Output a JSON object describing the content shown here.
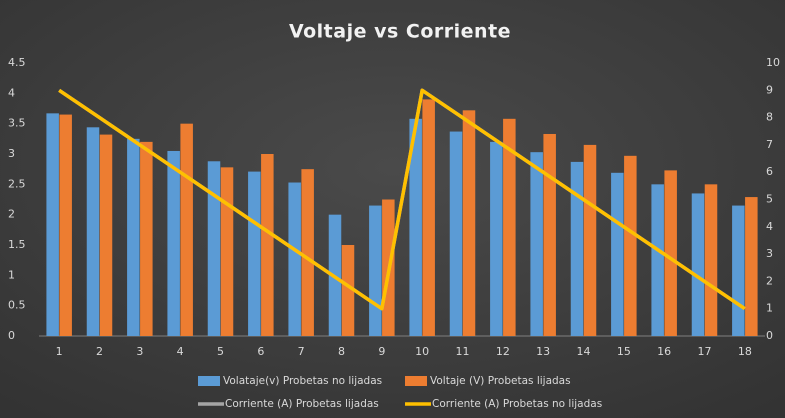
{
  "chart_data": {
    "type": "bar",
    "title": "Voltaje vs Corriente",
    "categories": [
      "1",
      "2",
      "3",
      "4",
      "5",
      "6",
      "7",
      "8",
      "9",
      "10",
      "11",
      "12",
      "13",
      "14",
      "15",
      "16",
      "17",
      "18"
    ],
    "series": [
      {
        "name": "Volataje(v) Probetas no lijadas",
        "type": "bar",
        "color": "#5b9bd5",
        "values": [
          3.67,
          3.44,
          3.25,
          3.05,
          2.88,
          2.71,
          2.53,
          2.0,
          2.15,
          3.58,
          3.37,
          3.2,
          3.03,
          2.87,
          2.69,
          2.5,
          2.35,
          2.15
        ]
      },
      {
        "name": "Voltaje (V) Probetas lijadas",
        "type": "bar",
        "color": "#ed7d31",
        "values": [
          3.65,
          3.32,
          3.2,
          3.5,
          2.78,
          3.0,
          2.75,
          1.5,
          2.25,
          3.9,
          3.72,
          3.58,
          3.33,
          3.15,
          2.97,
          2.73,
          2.5,
          2.29
        ]
      },
      {
        "name": "Corriente (A) Probetas lijadas",
        "type": "line",
        "axis": "y2",
        "color": "#a5a5a5",
        "values": [
          9,
          8,
          7,
          6,
          5,
          4,
          3,
          2,
          1,
          9,
          8,
          7,
          6,
          5,
          4,
          3,
          2,
          1
        ]
      },
      {
        "name": "Corriente (A) Probetas no lijadas",
        "type": "line",
        "axis": "y2",
        "color": "#ffc000",
        "values": [
          9,
          8,
          7,
          6,
          5,
          4,
          3,
          2,
          1,
          9,
          8,
          7,
          6,
          5,
          4,
          3,
          2,
          1
        ]
      }
    ],
    "ylim": [
      0,
      4.5
    ],
    "yticks": [
      0,
      0.5,
      1,
      1.5,
      2,
      2.5,
      3,
      3.5,
      4,
      4.5
    ],
    "y2lim": [
      0,
      10
    ],
    "y2ticks": [
      0,
      1,
      2,
      3,
      4,
      5,
      6,
      7,
      8,
      9,
      10
    ],
    "grid": false,
    "legend": "bottom"
  }
}
